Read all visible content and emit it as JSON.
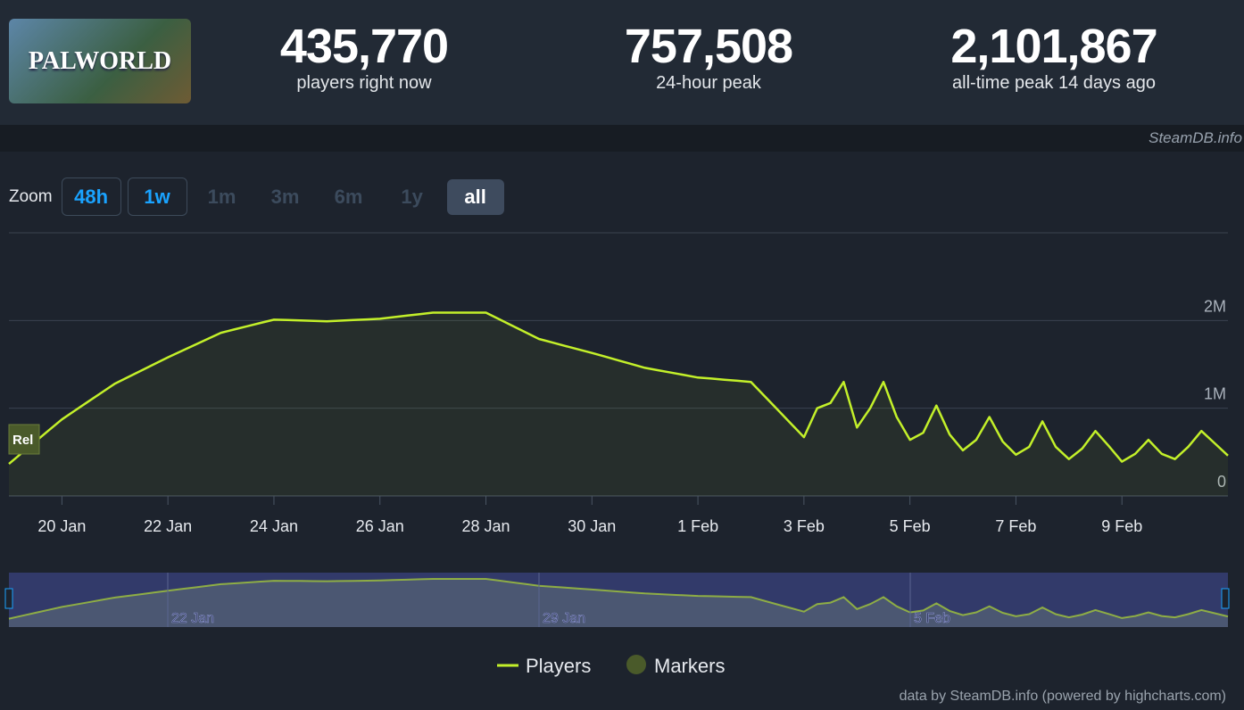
{
  "header": {
    "logo_text": "PALWORLD",
    "stats": [
      {
        "value": "435,770",
        "label": "players right now"
      },
      {
        "value": "757,508",
        "label": "24-hour peak"
      },
      {
        "value": "2,101,867",
        "label": "all-time peak 14 days ago"
      }
    ]
  },
  "brand": "SteamDB.info",
  "zoom": {
    "label": "Zoom",
    "buttons": [
      "48h",
      "1w",
      "1m",
      "3m",
      "6m",
      "1y",
      "all"
    ]
  },
  "chart_data": {
    "type": "line",
    "categories": [
      null,
      null,
      null,
      null,
      "20 Jan",
      null,
      null,
      null,
      null,
      null,
      null,
      null,
      "22 Jan",
      null,
      null,
      null,
      null,
      null,
      null,
      null,
      "24 Jan",
      null,
      null,
      null,
      null,
      null,
      null,
      null,
      "26 Jan",
      null,
      null,
      null,
      null,
      null,
      null,
      null,
      "28 Jan",
      null,
      null,
      null,
      null,
      null,
      null,
      null,
      "30 Jan",
      null,
      null,
      null,
      null,
      null,
      null,
      null,
      "1 Feb",
      null,
      null,
      null,
      null,
      null,
      null,
      null,
      "3 Feb",
      null,
      null,
      null,
      null,
      null,
      null,
      null,
      "5 Feb",
      null,
      null,
      null,
      null,
      null,
      null,
      null,
      "7 Feb",
      null,
      null,
      null,
      null,
      null,
      null,
      null,
      "9 Feb",
      null,
      null,
      null,
      null,
      null,
      null,
      null,
      null
    ],
    "series": [
      {
        "name": "Players",
        "color": "#c3f02a",
        "values": [
          365000,
          492000,
          619000,
          746000,
          873000,
          975000,
          1077000,
          1179000,
          1280000,
          1355000,
          1430000,
          1505000,
          1580000,
          1650000,
          1720000,
          1790000,
          1860000,
          1898000,
          1935000,
          1973000,
          2010000,
          2005000,
          2000000,
          1995000,
          1990000,
          1998000,
          2005000,
          2013000,
          2020000,
          2038000,
          2055000,
          2073000,
          2090000,
          2090000,
          2090000,
          2090000,
          2090000,
          2015000,
          1940000,
          1865000,
          1790000,
          1750000,
          1710000,
          1670000,
          1630000,
          1588000,
          1545000,
          1503000,
          1460000,
          1433000,
          1405000,
          1378000,
          1350000,
          1338000,
          1325000,
          1313000,
          1300000,
          1143000,
          985000,
          828000,
          670000,
          1000000,
          1060000,
          1300000,
          780000,
          1000000,
          1300000,
          900000,
          640000,
          720000,
          1030000,
          700000,
          520000,
          640000,
          900000,
          620000,
          470000,
          560000,
          850000,
          560000,
          420000,
          540000,
          740000,
          570000,
          390000,
          480000,
          640000,
          480000,
          420000,
          560000,
          740000,
          600000,
          460000
        ]
      }
    ],
    "markers": [
      {
        "name": "Markers",
        "color": "#4a5a2a",
        "label": "Rel",
        "index": 0
      }
    ],
    "ylim": [
      0,
      3000000
    ],
    "yticks": [
      0,
      {
        "value": 1000000,
        "label": "1M"
      },
      {
        "value": 2000000,
        "label": "2M"
      }
    ],
    "grid": true
  },
  "navigator": {
    "labels": [
      "22 Jan",
      "29 Jan",
      "5 Feb"
    ]
  },
  "credits": "data by SteamDB.info (powered by highcharts.com)"
}
